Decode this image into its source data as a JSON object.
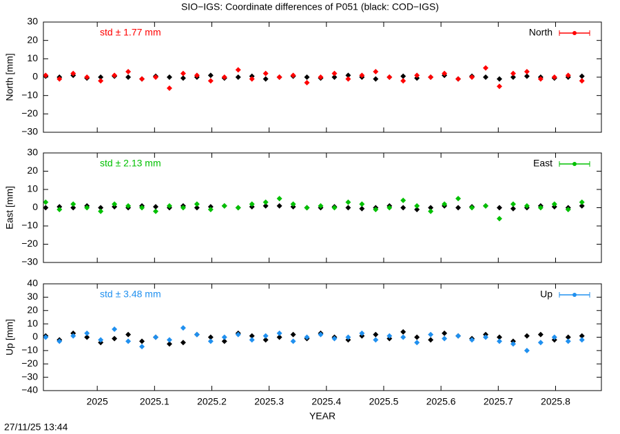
{
  "title": "SIO−IGS: Coordinate differences of P051 (black: COD−IGS)",
  "timestamp": "27/11/25 13:44",
  "chart_data": [
    {
      "type": "scatter",
      "y_label": "North [mm]",
      "annotation": "std ± 1.77 mm",
      "xlim": [
        2024.906,
        2025.88
      ],
      "ylim": [
        -30,
        30
      ],
      "yticks": [
        {
          "value": -30,
          "label": "−30"
        },
        {
          "value": -20,
          "label": "−20"
        },
        {
          "value": -10,
          "label": "−10"
        },
        0,
        10,
        20,
        30
      ],
      "x": [
        2024.91,
        2024.934,
        2024.958,
        2024.982,
        2025.006,
        2025.03,
        2025.054,
        2025.078,
        2025.102,
        2025.126,
        2025.15,
        2025.174,
        2025.198,
        2025.222,
        2025.246,
        2025.27,
        2025.294,
        2025.318,
        2025.342,
        2025.366,
        2025.39,
        2025.414,
        2025.438,
        2025.462,
        2025.486,
        2025.51,
        2025.534,
        2025.558,
        2025.582,
        2025.606,
        2025.63,
        2025.654,
        2025.678,
        2025.702,
        2025.726,
        2025.75,
        2025.774,
        2025.798,
        2025.822,
        2025.846
      ],
      "series": [
        {
          "color": "#000000",
          "values": [
            0.5,
            0,
            1,
            -0.5,
            0,
            0.5,
            0,
            -1,
            0.5,
            0,
            -0.5,
            0,
            1,
            -0.5,
            0,
            0.5,
            -1,
            0,
            0.5,
            0,
            -0.5,
            0,
            1,
            0,
            -1,
            0,
            0.5,
            -0.5,
            0,
            1,
            -1,
            0.5,
            0,
            -1,
            0,
            0.5,
            0,
            -0.5,
            0,
            0.5
          ]
        },
        {
          "name": "North",
          "color": "#ff0000",
          "values": [
            1,
            -1,
            2,
            0,
            -2,
            1,
            3,
            -1,
            0,
            -6,
            2,
            1,
            -2,
            0,
            4,
            -1,
            2,
            0,
            1,
            -3,
            0,
            2,
            -1,
            1,
            3,
            0,
            -2,
            1,
            0,
            2,
            -1,
            0,
            5,
            -5,
            2,
            3,
            -1,
            0,
            1,
            -2
          ]
        }
      ]
    },
    {
      "type": "scatter",
      "y_label": "East [mm]",
      "annotation": "std ± 2.13 mm",
      "xlim": [
        2024.906,
        2025.88
      ],
      "ylim": [
        -30,
        30
      ],
      "yticks": [
        {
          "value": -30,
          "label": "−30"
        },
        {
          "value": -20,
          "label": "−20"
        },
        {
          "value": -10,
          "label": "−10"
        },
        0,
        10,
        20,
        30
      ],
      "x": [
        2024.91,
        2024.934,
        2024.958,
        2024.982,
        2025.006,
        2025.03,
        2025.054,
        2025.078,
        2025.102,
        2025.126,
        2025.15,
        2025.174,
        2025.198,
        2025.222,
        2025.246,
        2025.27,
        2025.294,
        2025.318,
        2025.342,
        2025.366,
        2025.39,
        2025.414,
        2025.438,
        2025.462,
        2025.486,
        2025.51,
        2025.534,
        2025.558,
        2025.582,
        2025.606,
        2025.63,
        2025.654,
        2025.678,
        2025.702,
        2025.726,
        2025.75,
        2025.774,
        2025.798,
        2025.822,
        2025.846
      ],
      "series": [
        {
          "color": "#000000",
          "values": [
            0,
            0.5,
            0,
            1,
            0,
            0.5,
            0,
            1,
            0.5,
            0,
            1,
            0,
            0.5,
            1,
            0,
            0.5,
            1,
            1,
            0.5,
            0,
            0,
            0.5,
            0,
            -0.5,
            0,
            1,
            0,
            -1,
            0,
            1,
            0,
            0.5,
            1,
            0,
            -0.5,
            0,
            1,
            0.5,
            0,
            1
          ]
        },
        {
          "name": "East",
          "color": "#00c000",
          "values": [
            3,
            -1,
            2,
            0,
            -2,
            2,
            1,
            0,
            -2,
            1,
            0,
            2,
            -1,
            1,
            0,
            2,
            3,
            5,
            2,
            0,
            1,
            0,
            3,
            2,
            -1,
            0,
            4,
            1,
            -2,
            2,
            5,
            0,
            1,
            -6,
            2,
            1,
            0,
            2,
            -1,
            3
          ]
        }
      ]
    },
    {
      "type": "scatter",
      "y_label": "Up [mm]",
      "x_label": "YEAR",
      "annotation": "std ± 3.48 mm",
      "xlim": [
        2024.906,
        2025.88
      ],
      "ylim": [
        -40,
        40
      ],
      "xticks": [
        2025,
        2025.1,
        2025.2,
        2025.3,
        2025.4,
        2025.5,
        2025.6,
        2025.7,
        2025.8
      ],
      "yticks": [
        {
          "value": -40,
          "label": "−40"
        },
        {
          "value": -30,
          "label": "−30"
        },
        {
          "value": -20,
          "label": "−20"
        },
        {
          "value": -10,
          "label": "−10"
        },
        0,
        10,
        20,
        30,
        40
      ],
      "x": [
        2024.91,
        2024.934,
        2024.958,
        2024.982,
        2025.006,
        2025.03,
        2025.054,
        2025.078,
        2025.102,
        2025.126,
        2025.15,
        2025.174,
        2025.198,
        2025.222,
        2025.246,
        2025.27,
        2025.294,
        2025.318,
        2025.342,
        2025.366,
        2025.39,
        2025.414,
        2025.438,
        2025.462,
        2025.486,
        2025.51,
        2025.534,
        2025.558,
        2025.582,
        2025.606,
        2025.63,
        2025.654,
        2025.678,
        2025.702,
        2025.726,
        2025.75,
        2025.774,
        2025.798,
        2025.822,
        2025.846
      ],
      "series": [
        {
          "color": "#000000",
          "values": [
            1,
            -2,
            3,
            0,
            -4,
            -1,
            2,
            -3,
            0,
            -5,
            -4,
            2,
            0,
            -3,
            3,
            1,
            -2,
            0,
            2,
            -1,
            3,
            0,
            -2,
            1,
            2,
            -1,
            4,
            0,
            -2,
            3,
            1,
            -1,
            2,
            0,
            -3,
            1,
            2,
            -2,
            0,
            1
          ]
        },
        {
          "name": "Up",
          "color": "#2090ef",
          "values": [
            0,
            -3,
            1,
            3,
            -2,
            6,
            -3,
            -7,
            0,
            -2,
            7,
            2,
            -3,
            0,
            2,
            -2,
            1,
            3,
            -3,
            0,
            2,
            -1,
            0,
            3,
            -2,
            1,
            0,
            -4,
            2,
            -1,
            1,
            -2,
            0,
            -3,
            -5,
            -10,
            -4,
            0,
            -3,
            -2
          ]
        }
      ]
    }
  ]
}
